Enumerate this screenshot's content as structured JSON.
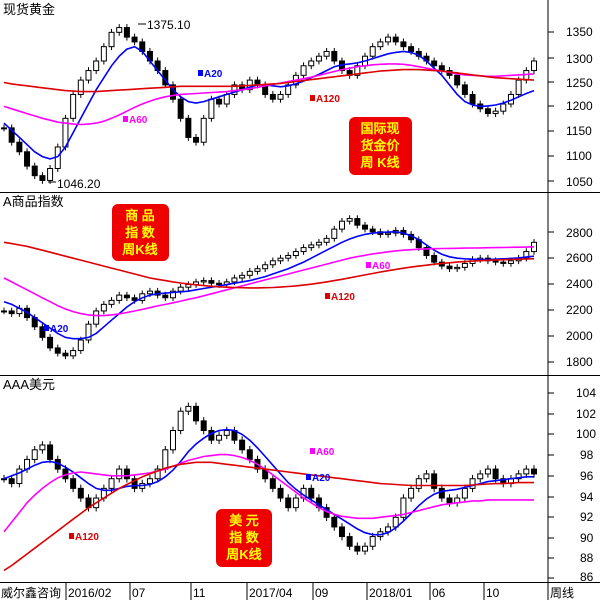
{
  "x_axis": {
    "dates": [
      "2016/02",
      "07",
      "11",
      "2017/04",
      "09",
      "2018/01",
      "06",
      "10"
    ],
    "period_label": "周线",
    "source_label": "威尔鑫咨询"
  },
  "colors": {
    "ma20": "#0000ff",
    "ma60": "#ff00ff",
    "ma120": "#dd0000",
    "candle": "#000000",
    "note_bg": "#ee0000",
    "note_text": "#ffff00"
  },
  "panels": [
    {
      "title": "现货黄金",
      "ticks": [
        "1350",
        "1300",
        "1250",
        "1200",
        "1150",
        "1100",
        "1050"
      ],
      "ma_labels": [
        "A20",
        "A60",
        "A120"
      ],
      "annotations": [
        "1375.10",
        "1046.20"
      ],
      "note": [
        "国际现",
        "货金价",
        "周 K线"
      ]
    },
    {
      "title": "A商品指数",
      "ticks": [
        "2800",
        "2600",
        "2400",
        "2200",
        "2000",
        "1800"
      ],
      "ma_labels": [
        "A20",
        "A60",
        "A120"
      ],
      "note": [
        "商  品",
        "指  数",
        "周K线"
      ]
    },
    {
      "title": "AAA美元",
      "ticks": [
        "104",
        "102",
        "100",
        "98",
        "96",
        "94",
        "92",
        "90",
        "88",
        "86"
      ],
      "ma_labels": [
        "A20",
        "A60",
        "A120"
      ],
      "note": [
        "美  元",
        "指  数",
        "周K线"
      ]
    }
  ],
  "chart_data": [
    {
      "type": "line",
      "title": "现货黄金",
      "ylim": [
        1030,
        1390
      ],
      "yticks": [
        1050,
        1100,
        1150,
        1200,
        1250,
        1300,
        1350
      ],
      "x_labels": [
        "2016/02",
        "07",
        "11",
        "2017/04",
        "09",
        "2018/01",
        "06",
        "10"
      ],
      "annotations": [
        {
          "text": "1375.10",
          "value": 1375.1
        },
        {
          "text": "1046.20",
          "value": 1046.2
        }
      ],
      "close": [
        1160,
        1130,
        1110,
        1080,
        1060,
        1050,
        1075,
        1120,
        1180,
        1230,
        1260,
        1280,
        1300,
        1330,
        1360,
        1370,
        1350,
        1340,
        1320,
        1300,
        1280,
        1250,
        1220,
        1180,
        1140,
        1130,
        1180,
        1220,
        1210,
        1230,
        1250,
        1240,
        1260,
        1250,
        1230,
        1220,
        1230,
        1250,
        1270,
        1290,
        1300,
        1310,
        1320,
        1300,
        1280,
        1270,
        1290,
        1310,
        1330,
        1340,
        1350,
        1340,
        1330,
        1320,
        1310,
        1300,
        1290,
        1280,
        1270,
        1250,
        1230,
        1210,
        1200,
        1190,
        1195,
        1210,
        1230,
        1260,
        1280,
        1300
      ],
      "series": [
        {
          "name": "A20",
          "values": [
            1170,
            1155,
            1140,
            1125,
            1110,
            1100,
            1095,
            1100,
            1120,
            1150,
            1180,
            1210,
            1240,
            1265,
            1290,
            1310,
            1325,
            1330,
            1320,
            1300,
            1280,
            1260,
            1240,
            1225,
            1215,
            1212,
            1215,
            1220,
            1225,
            1230,
            1235,
            1240,
            1245,
            1250,
            1250,
            1248,
            1246,
            1248,
            1252,
            1258,
            1265,
            1272,
            1280,
            1288,
            1292,
            1294,
            1296,
            1300,
            1305,
            1310,
            1315,
            1318,
            1320,
            1318,
            1312,
            1300,
            1285,
            1270,
            1250,
            1230,
            1215,
            1208,
            1205,
            1206,
            1208,
            1212,
            1218,
            1225,
            1232,
            1238
          ]
        },
        {
          "name": "A60",
          "values": [
            1205,
            1200,
            1195,
            1190,
            1185,
            1180,
            1176,
            1172,
            1170,
            1168,
            1167,
            1168,
            1170,
            1174,
            1180,
            1187,
            1195,
            1203,
            1210,
            1216,
            1221,
            1225,
            1228,
            1230,
            1231,
            1232,
            1233,
            1234,
            1235,
            1236,
            1238,
            1240,
            1242,
            1245,
            1248,
            1251,
            1254,
            1257,
            1260,
            1263,
            1266,
            1270,
            1274,
            1278,
            1282,
            1285,
            1288,
            1290,
            1292,
            1293,
            1294,
            1294,
            1293,
            1291,
            1288,
            1285,
            1282,
            1279,
            1276,
            1273,
            1271,
            1270,
            1269,
            1268,
            1268,
            1269,
            1270,
            1271,
            1272,
            1273
          ]
        },
        {
          "name": "A120",
          "values": [
            1255,
            1252,
            1250,
            1248,
            1246,
            1244,
            1242,
            1240,
            1238,
            1237,
            1236,
            1236,
            1236,
            1237,
            1238,
            1239,
            1240,
            1241,
            1242,
            1243,
            1244,
            1245,
            1246,
            1247,
            1247,
            1247,
            1247,
            1247,
            1247,
            1247,
            1247,
            1248,
            1249,
            1250,
            1251,
            1252,
            1253,
            1255,
            1257,
            1259,
            1261,
            1263,
            1265,
            1267,
            1269,
            1271,
            1273,
            1275,
            1277,
            1279,
            1280,
            1281,
            1282,
            1282,
            1282,
            1281,
            1280,
            1279,
            1277,
            1275,
            1273,
            1271,
            1269,
            1267,
            1265,
            1264,
            1263,
            1262,
            1261,
            1260
          ]
        }
      ]
    },
    {
      "type": "line",
      "title": "A商品指数",
      "ylim": [
        1730,
        2980
      ],
      "yticks": [
        1800,
        2000,
        2200,
        2400,
        2600,
        2800
      ],
      "x_labels": [
        "2016/02",
        "07",
        "11",
        "2017/04",
        "09",
        "2018/01",
        "06",
        "10"
      ],
      "close": [
        2200,
        2180,
        2220,
        2150,
        2080,
        2000,
        1920,
        1880,
        1860,
        1900,
        1980,
        2100,
        2200,
        2250,
        2280,
        2320,
        2300,
        2280,
        2330,
        2350,
        2320,
        2300,
        2350,
        2380,
        2400,
        2420,
        2430,
        2410,
        2400,
        2420,
        2450,
        2470,
        2500,
        2520,
        2550,
        2580,
        2600,
        2620,
        2650,
        2680,
        2700,
        2720,
        2750,
        2820,
        2880,
        2900,
        2850,
        2820,
        2800,
        2780,
        2790,
        2810,
        2780,
        2740,
        2680,
        2620,
        2570,
        2540,
        2520,
        2530,
        2560,
        2590,
        2600,
        2580,
        2570,
        2560,
        2580,
        2600,
        2650,
        2720
      ],
      "series": [
        {
          "name": "A20",
          "values": [
            2270,
            2250,
            2220,
            2190,
            2150,
            2110,
            2070,
            2030,
            2000,
            1990,
            1990,
            2000,
            2030,
            2080,
            2130,
            2180,
            2230,
            2270,
            2300,
            2320,
            2330,
            2335,
            2340,
            2345,
            2350,
            2360,
            2370,
            2380,
            2390,
            2400,
            2410,
            2420,
            2430,
            2445,
            2460,
            2480,
            2500,
            2520,
            2545,
            2570,
            2600,
            2630,
            2660,
            2690,
            2720,
            2745,
            2765,
            2780,
            2790,
            2795,
            2798,
            2800,
            2790,
            2770,
            2740,
            2700,
            2660,
            2630,
            2610,
            2600,
            2595,
            2592,
            2590,
            2590,
            2592,
            2595,
            2598,
            2602,
            2608,
            2615
          ]
        },
        {
          "name": "A60",
          "values": [
            2450,
            2420,
            2390,
            2360,
            2330,
            2300,
            2270,
            2240,
            2215,
            2195,
            2180,
            2170,
            2165,
            2165,
            2170,
            2178,
            2188,
            2200,
            2212,
            2225,
            2238,
            2250,
            2262,
            2275,
            2288,
            2300,
            2315,
            2330,
            2345,
            2360,
            2375,
            2390,
            2405,
            2420,
            2435,
            2450,
            2465,
            2480,
            2495,
            2510,
            2525,
            2540,
            2555,
            2570,
            2585,
            2600,
            2612,
            2622,
            2632,
            2640,
            2648,
            2655,
            2660,
            2664,
            2668,
            2670,
            2672,
            2673,
            2674,
            2675,
            2676,
            2677,
            2678,
            2679,
            2680,
            2681,
            2682,
            2683,
            2684,
            2685
          ]
        },
        {
          "name": "A120",
          "values": [
            2720,
            2710,
            2700,
            2690,
            2675,
            2660,
            2645,
            2630,
            2615,
            2600,
            2585,
            2570,
            2555,
            2540,
            2525,
            2510,
            2495,
            2480,
            2465,
            2450,
            2440,
            2430,
            2420,
            2412,
            2405,
            2398,
            2392,
            2387,
            2383,
            2380,
            2378,
            2376,
            2375,
            2375,
            2376,
            2378,
            2381,
            2385,
            2390,
            2396,
            2403,
            2411,
            2420,
            2430,
            2440,
            2451,
            2462,
            2473,
            2484,
            2495,
            2505,
            2515,
            2524,
            2532,
            2540,
            2547,
            2554,
            2560,
            2565,
            2570,
            2574,
            2578,
            2581,
            2584,
            2586,
            2588,
            2590,
            2592,
            2594,
            2596
          ]
        }
      ]
    },
    {
      "type": "line",
      "title": "AAA美元",
      "ylim": [
        85.5,
        105.2
      ],
      "yticks": [
        86,
        88,
        90,
        92,
        94,
        96,
        98,
        100,
        102,
        104
      ],
      "x_labels": [
        "2016/02",
        "07",
        "11",
        "2017/04",
        "09",
        "2018/01",
        "06",
        "10"
      ],
      "close": [
        96,
        95.5,
        97,
        98,
        99,
        99.5,
        98,
        97,
        96,
        95,
        94,
        93,
        94,
        95,
        96,
        97,
        96,
        95,
        95.5,
        96,
        97,
        99,
        101,
        103,
        103.5,
        102,
        101,
        100,
        100.5,
        101,
        100,
        99,
        98,
        97,
        96,
        95,
        94,
        93,
        94,
        95,
        94,
        93,
        92,
        91,
        90,
        89,
        88.5,
        89,
        90,
        90.5,
        91,
        92,
        94,
        95,
        96,
        96.5,
        95,
        94,
        93.5,
        94,
        95,
        96,
        96.5,
        97,
        96,
        95.5,
        96,
        96.5,
        97,
        96.5
      ],
      "series": [
        {
          "name": "A20",
          "values": [
            96,
            96.3,
            96.6,
            97,
            97.4,
            97.7,
            97.8,
            97.6,
            97.2,
            96.7,
            96.1,
            95.5,
            95,
            94.8,
            94.8,
            95,
            95.2,
            95.3,
            95.3,
            95.4,
            95.7,
            96.2,
            96.9,
            97.8,
            98.8,
            99.6,
            100.2,
            100.7,
            101,
            101.1,
            101,
            100.6,
            100,
            99.2,
            98.3,
            97.4,
            96.5,
            95.6,
            94.9,
            94.3,
            93.8,
            93.3,
            92.8,
            92.3,
            91.8,
            91.3,
            90.8,
            90.4,
            90.2,
            90.2,
            90.4,
            90.9,
            91.6,
            92.4,
            93.2,
            93.9,
            94.4,
            94.7,
            94.8,
            94.9,
            95.1,
            95.3,
            95.5,
            95.7,
            95.8,
            95.9,
            96,
            96.1,
            96.2,
            96.2
          ]
        },
        {
          "name": "A60",
          "values": [
            90.5,
            91.5,
            92.5,
            93.5,
            94.3,
            95,
            95.6,
            96.1,
            96.4,
            96.6,
            96.7,
            96.6,
            96.5,
            96.4,
            96.3,
            96.3,
            96.3,
            96.4,
            96.5,
            96.6,
            96.8,
            97,
            97.3,
            97.6,
            97.9,
            98.1,
            98.3,
            98.4,
            98.5,
            98.5,
            98.4,
            98.2,
            97.9,
            97.5,
            97,
            96.4,
            95.8,
            95.2,
            94.6,
            94,
            93.5,
            93,
            92.6,
            92.3,
            92.1,
            92,
            91.9,
            91.9,
            91.9,
            92,
            92.1,
            92.2,
            92.3,
            92.5,
            92.7,
            92.9,
            93.1,
            93.3,
            93.4,
            93.5,
            93.6,
            93.7,
            93.7,
            93.8,
            93.8,
            93.8,
            93.8,
            93.8,
            93.8,
            93.8
          ]
        },
        {
          "name": "A120",
          "values": [
            86.5,
            87,
            87.6,
            88.2,
            88.8,
            89.4,
            90,
            90.6,
            91.2,
            91.8,
            92.4,
            93,
            93.5,
            94,
            94.5,
            95,
            95.4,
            95.8,
            96.2,
            96.5,
            96.8,
            97.1,
            97.3,
            97.5,
            97.6,
            97.7,
            97.7,
            97.7,
            97.6,
            97.5,
            97.4,
            97.3,
            97.2,
            97.1,
            97,
            96.9,
            96.8,
            96.7,
            96.6,
            96.5,
            96.4,
            96.3,
            96.2,
            96.1,
            96,
            95.9,
            95.8,
            95.7,
            95.6,
            95.5,
            95.45,
            95.4,
            95.35,
            95.3,
            95.3,
            95.3,
            95.3,
            95.3,
            95.3,
            95.3,
            95.3,
            95.35,
            95.4,
            95.45,
            95.5,
            95.5,
            95.55,
            95.6,
            95.6,
            95.6
          ]
        }
      ]
    }
  ]
}
